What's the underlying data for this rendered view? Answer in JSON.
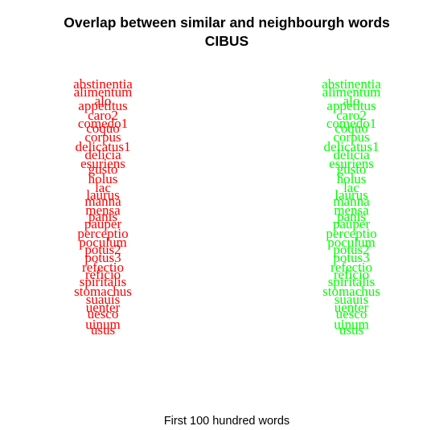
{
  "chart_data": {
    "type": "scatter",
    "title": "Overlap between similar and neighbourgh words",
    "subtitle": "CIBUS",
    "xlabel": "First 100 hundred words",
    "ylabel": "",
    "grid": false,
    "series": [
      {
        "color": "#ff0000",
        "words": [
          "abstinentia",
          "alimentum",
          "alo",
          "appetitus",
          "caro2",
          "comedo1",
          "coquo",
          "corpus",
          "delicatus1",
          "delicia",
          "esuriens",
          "gusto",
          "holus",
          "lac",
          "laurus",
          "manna",
          "mensa",
          "panis",
          "pauper",
          "perceptio",
          "poculum",
          "potus2",
          "potus3",
          "refectio",
          "reficio",
          "spiritalis",
          "stomachus",
          "suauis",
          "uenter",
          "uesco",
          "uinum",
          "usus"
        ]
      },
      {
        "color": "#00ff00",
        "words": [
          "abstinentia",
          "alimentum",
          "alo",
          "appetitus",
          "caro2",
          "comedo1",
          "coquo",
          "corpus",
          "delicatus1",
          "delicia",
          "esuriens",
          "gusto",
          "holus",
          "lac",
          "laurus",
          "manna",
          "mensa",
          "panis",
          "pauper",
          "perceptio",
          "poculum",
          "potus2",
          "potus3",
          "refectio",
          "reficio",
          "spiritalis",
          "stomachus",
          "suauis",
          "uenter",
          "uesco",
          "uinum",
          "usus"
        ]
      }
    ]
  }
}
